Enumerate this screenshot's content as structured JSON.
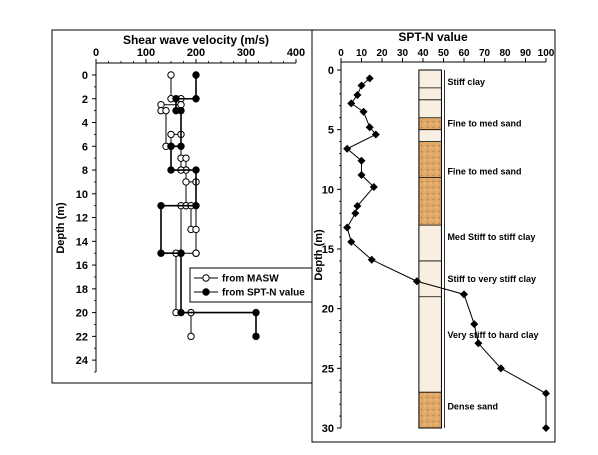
{
  "chart_data": [
    {
      "type": "line",
      "title": "Shear wave velocity (m/s)",
      "xlabel": "",
      "ylabel": "Depth (m)",
      "xlim": [
        0,
        400
      ],
      "ylim": [
        0,
        25
      ],
      "x_ticks": [
        "0",
        "100",
        "200",
        "300",
        "400"
      ],
      "y_ticks": [
        "0",
        "2",
        "4",
        "6",
        "8",
        "10",
        "12",
        "14",
        "16",
        "18",
        "20",
        "22",
        "24"
      ],
      "x_axis": "top",
      "y_inverted": true,
      "legend_position": "lower-right",
      "series": [
        {
          "name": "from MASW",
          "marker": "open-circle",
          "points": [
            [
              150,
              0
            ],
            [
              150,
              2
            ],
            [
              170,
              2
            ],
            [
              170,
              2.5
            ],
            [
              130,
              2.5
            ],
            [
              130,
              3
            ],
            [
              140,
              3
            ],
            [
              140,
              6
            ],
            [
              150,
              6
            ],
            [
              150,
              5
            ],
            [
              170,
              5
            ],
            [
              170,
              8
            ],
            [
              180,
              8
            ],
            [
              180,
              11
            ],
            [
              170,
              11
            ],
            [
              170,
              15
            ],
            [
              200,
              15
            ],
            [
              200,
              9
            ],
            [
              180,
              9
            ],
            [
              180,
              8
            ],
            [
              170,
              8
            ],
            [
              170,
              7
            ],
            [
              180,
              7
            ],
            [
              180,
              11
            ],
            [
              190,
              11
            ],
            [
              190,
              13
            ],
            [
              200,
              13
            ],
            [
              200,
              15
            ],
            [
              160,
              15
            ],
            [
              160,
              20
            ],
            [
              190,
              20
            ],
            [
              190,
              22
            ]
          ]
        },
        {
          "name": "from SPT-N value",
          "marker": "filled-circle",
          "points": [
            [
              200,
              0
            ],
            [
              200,
              2
            ],
            [
              160,
              2
            ],
            [
              160,
              3
            ],
            [
              170,
              3
            ],
            [
              170,
              6
            ],
            [
              150,
              6
            ],
            [
              150,
              8
            ],
            [
              200,
              8
            ],
            [
              200,
              11
            ],
            [
              130,
              11
            ],
            [
              130,
              15
            ],
            [
              170,
              15
            ],
            [
              170,
              20
            ],
            [
              320,
              20
            ],
            [
              320,
              22
            ]
          ]
        }
      ]
    },
    {
      "type": "line",
      "title": "SPT-N value",
      "xlabel": "",
      "ylabel": "Depth (m)",
      "xlim": [
        0,
        100
      ],
      "ylim": [
        0,
        30
      ],
      "x_ticks": [
        "0",
        "10",
        "20",
        "30",
        "40",
        "50",
        "60",
        "70",
        "80",
        "90",
        "100"
      ],
      "y_ticks": [
        "0",
        "5",
        "10",
        "15",
        "20",
        "25",
        "30"
      ],
      "x_axis": "top",
      "y_inverted": true,
      "series": [
        {
          "name": "",
          "marker": "filled-diamond",
          "points": [
            [
              14,
              0.7
            ],
            [
              10,
              1.3
            ],
            [
              8,
              2.1
            ],
            [
              5,
              2.8
            ],
            [
              11,
              3.5
            ],
            [
              14,
              4.8
            ],
            [
              17,
              5.4
            ],
            [
              3,
              6.6
            ],
            [
              10,
              7.6
            ],
            [
              10,
              8.8
            ],
            [
              16,
              9.8
            ],
            [
              8,
              11.4
            ],
            [
              7,
              12.0
            ],
            [
              3,
              13.2
            ],
            [
              5,
              14.4
            ],
            [
              15,
              15.9
            ],
            [
              37,
              17.7
            ],
            [
              60,
              18.8
            ],
            [
              65,
              21.3
            ],
            [
              67,
              22.9
            ],
            [
              78,
              25.0
            ],
            [
              100,
              27.1
            ],
            [
              100,
              30.0
            ]
          ]
        }
      ],
      "soil_layers": [
        {
          "label": "Stiff clay",
          "top": 0,
          "bottom": 4,
          "fill": "#f8efe2"
        },
        {
          "label": "Fine to med sand",
          "top": 4,
          "bottom": 5,
          "fill": "#e0a866"
        },
        {
          "label": "",
          "top": 5,
          "bottom": 6,
          "fill": "#f8efe2"
        },
        {
          "label": "Fine to med sand",
          "top": 6,
          "bottom": 13,
          "fill": "#e0a866"
        },
        {
          "label": "Med Stiff to stiff clay",
          "top": 13,
          "bottom": 16,
          "fill": "#f8efe2"
        },
        {
          "label": "Stiff to very stiff clay",
          "top": 16,
          "bottom": 19,
          "fill": "#f8efe2"
        },
        {
          "label": "Very stiff to hard clay",
          "top": 19,
          "bottom": 27,
          "fill": "#f8efe2"
        },
        {
          "label": "Dense sand",
          "top": 27,
          "bottom": 30,
          "fill": "#e0a866"
        }
      ],
      "column_dividers": [
        1.5,
        2.5,
        4,
        5,
        6,
        9,
        13,
        16,
        19,
        27
      ]
    }
  ]
}
